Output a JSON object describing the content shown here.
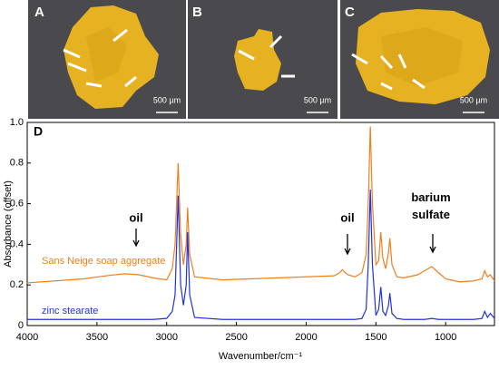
{
  "panels": [
    {
      "label": "A",
      "scale_bar": "500 µm"
    },
    {
      "label": "B",
      "scale_bar": "500 µm"
    },
    {
      "label": "C",
      "scale_bar": "500 µm"
    }
  ],
  "chart_data": {
    "type": "line",
    "panel_label": "D",
    "x_label": "Wavenumber/cm⁻¹",
    "y_label": "Absorbance (offset)",
    "xlim": [
      4000,
      650
    ],
    "xticks": [
      4000,
      3500,
      3000,
      2500,
      2000,
      1500,
      1000
    ],
    "ylim": [
      0,
      1
    ],
    "yticks": [
      0.0,
      0.2,
      0.4,
      0.6,
      0.8,
      {
        "value": 1,
        "label": "1.0"
      }
    ],
    "annotations": [
      "oil",
      "oil",
      "barium sulfate"
    ],
    "x": [
      4000,
      3800,
      3600,
      3400,
      3300,
      3200,
      3100,
      3000,
      2960,
      2940,
      2918,
      2900,
      2880,
      2860,
      2850,
      2835,
      2800,
      2600,
      2400,
      2200,
      2000,
      1800,
      1760,
      1740,
      1720,
      1700,
      1650,
      1600,
      1570,
      1555,
      1540,
      1525,
      1500,
      1480,
      1465,
      1450,
      1430,
      1410,
      1400,
      1385,
      1350,
      1300,
      1200,
      1150,
      1100,
      1050,
      1000,
      900,
      800,
      740,
      720,
      700,
      680,
      650
    ],
    "series": [
      {
        "name": "Sans Neige soap aggregate",
        "color": "#f07f1e",
        "values": [
          0.21,
          0.22,
          0.23,
          0.248,
          0.255,
          0.25,
          0.235,
          0.225,
          0.28,
          0.4,
          0.8,
          0.45,
          0.3,
          0.4,
          0.58,
          0.35,
          0.24,
          0.225,
          0.23,
          0.235,
          0.24,
          0.245,
          0.26,
          0.275,
          0.26,
          0.25,
          0.24,
          0.26,
          0.35,
          0.6,
          0.98,
          0.6,
          0.3,
          0.32,
          0.46,
          0.33,
          0.28,
          0.36,
          0.43,
          0.3,
          0.24,
          0.235,
          0.25,
          0.27,
          0.29,
          0.26,
          0.23,
          0.215,
          0.22,
          0.23,
          0.27,
          0.24,
          0.25,
          0.22
        ]
      },
      {
        "name": "zinc stearate",
        "color": "#2233dd",
        "values": [
          0.03,
          0.03,
          0.03,
          0.03,
          0.03,
          0.03,
          0.03,
          0.035,
          0.07,
          0.15,
          0.64,
          0.2,
          0.1,
          0.2,
          0.46,
          0.15,
          0.04,
          0.03,
          0.03,
          0.03,
          0.03,
          0.03,
          0.03,
          0.03,
          0.03,
          0.03,
          0.03,
          0.035,
          0.08,
          0.3,
          0.67,
          0.3,
          0.05,
          0.08,
          0.19,
          0.07,
          0.05,
          0.1,
          0.16,
          0.06,
          0.035,
          0.03,
          0.03,
          0.03,
          0.035,
          0.03,
          0.03,
          0.03,
          0.03,
          0.035,
          0.07,
          0.04,
          0.06,
          0.035
        ]
      }
    ]
  }
}
